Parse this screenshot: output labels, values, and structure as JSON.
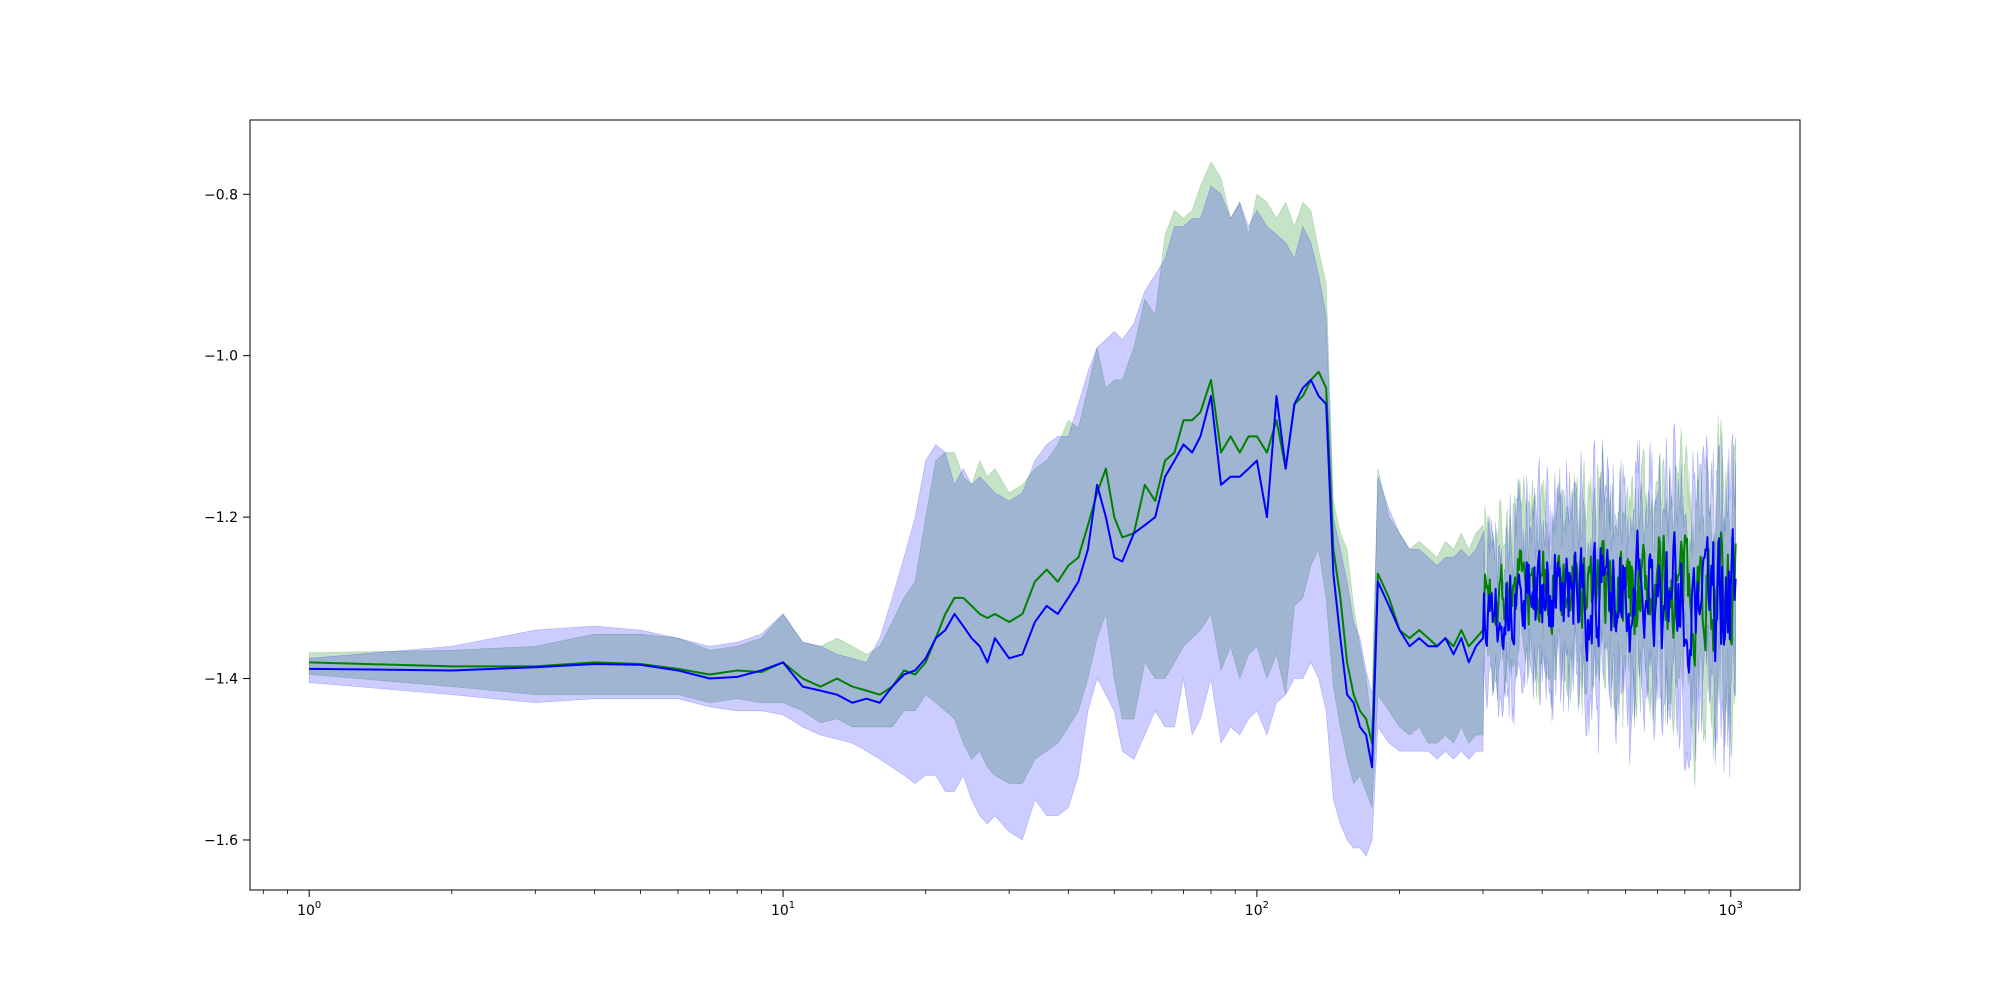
{
  "chart_data": {
    "type": "line",
    "title": "",
    "xlabel": "",
    "ylabel": "",
    "xscale": "log",
    "xlim": [
      0.75,
      1400
    ],
    "ylim": [
      -1.662,
      -0.708
    ],
    "x_ticks": [
      {
        "value": 1,
        "base": "10",
        "exp": "0"
      },
      {
        "value": 10,
        "base": "10",
        "exp": "1"
      },
      {
        "value": 100,
        "base": "10",
        "exp": "2"
      },
      {
        "value": 1000,
        "base": "10",
        "exp": "3"
      }
    ],
    "y_ticks": [
      {
        "value": -0.8,
        "label": "−0.8"
      },
      {
        "value": -1.0,
        "label": "−1.0"
      },
      {
        "value": -1.2,
        "label": "−1.2"
      },
      {
        "value": -1.4,
        "label": "−1.4"
      },
      {
        "value": -1.6,
        "label": "−1.6"
      }
    ],
    "grid": false,
    "legend": "none",
    "noise_region": {
      "x_start": 300,
      "x_end": 1024
    },
    "series": [
      {
        "color": "#008000",
        "band_color": "#008000",
        "band_opacity": 0.22,
        "noise_seed": 7,
        "noise_center": -1.29,
        "noise_amplitude": 0.07,
        "noise_band_halfwidth": 0.13,
        "x": [
          1,
          2,
          3,
          4,
          5,
          6,
          7,
          8,
          9,
          10,
          11,
          12,
          13,
          14,
          15,
          16,
          17,
          18,
          19,
          20,
          21,
          22,
          23,
          24,
          25,
          26,
          27,
          28,
          30,
          32,
          34,
          36,
          38,
          40,
          42,
          44,
          46,
          48,
          50,
          52,
          55,
          58,
          61,
          64,
          67,
          70,
          73,
          76,
          80,
          84,
          88,
          92,
          96,
          100,
          105,
          110,
          115,
          120,
          125,
          130,
          135,
          140,
          145,
          150,
          155,
          160,
          165,
          170,
          175,
          180,
          190,
          200,
          210,
          220,
          230,
          240,
          250,
          260,
          270,
          280,
          290,
          300
        ],
        "y": [
          -1.38,
          -1.385,
          -1.385,
          -1.38,
          -1.382,
          -1.388,
          -1.395,
          -1.39,
          -1.392,
          -1.38,
          -1.4,
          -1.41,
          -1.4,
          -1.41,
          -1.415,
          -1.42,
          -1.41,
          -1.39,
          -1.395,
          -1.38,
          -1.35,
          -1.32,
          -1.3,
          -1.3,
          -1.31,
          -1.32,
          -1.325,
          -1.32,
          -1.33,
          -1.32,
          -1.28,
          -1.265,
          -1.28,
          -1.26,
          -1.25,
          -1.21,
          -1.17,
          -1.14,
          -1.2,
          -1.225,
          -1.22,
          -1.16,
          -1.18,
          -1.13,
          -1.12,
          -1.08,
          -1.08,
          -1.07,
          -1.03,
          -1.12,
          -1.1,
          -1.12,
          -1.1,
          -1.1,
          -1.12,
          -1.08,
          -1.14,
          -1.06,
          -1.05,
          -1.03,
          -1.02,
          -1.04,
          -1.24,
          -1.3,
          -1.38,
          -1.42,
          -1.44,
          -1.45,
          -1.48,
          -1.27,
          -1.3,
          -1.34,
          -1.35,
          -1.34,
          -1.35,
          -1.36,
          -1.35,
          -1.36,
          -1.34,
          -1.36,
          -1.35,
          -1.34
        ],
        "upper": [
          -1.368,
          -1.365,
          -1.36,
          -1.345,
          -1.345,
          -1.35,
          -1.365,
          -1.36,
          -1.35,
          -1.32,
          -1.355,
          -1.36,
          -1.35,
          -1.36,
          -1.37,
          -1.36,
          -1.33,
          -1.3,
          -1.28,
          -1.2,
          -1.13,
          -1.12,
          -1.12,
          -1.15,
          -1.16,
          -1.13,
          -1.15,
          -1.14,
          -1.17,
          -1.16,
          -1.14,
          -1.13,
          -1.11,
          -1.08,
          -1.09,
          -1.04,
          -0.99,
          -1.04,
          -1.03,
          -1.03,
          -0.99,
          -0.93,
          -0.95,
          -0.85,
          -0.82,
          -0.83,
          -0.82,
          -0.79,
          -0.76,
          -0.78,
          -0.83,
          -0.81,
          -0.85,
          -0.8,
          -0.81,
          -0.83,
          -0.81,
          -0.84,
          -0.81,
          -0.82,
          -0.87,
          -0.91,
          -1.18,
          -1.22,
          -1.24,
          -1.31,
          -1.36,
          -1.4,
          -1.46,
          -1.14,
          -1.2,
          -1.22,
          -1.24,
          -1.23,
          -1.24,
          -1.25,
          -1.23,
          -1.24,
          -1.22,
          -1.24,
          -1.22,
          -1.21
        ],
        "lower": [
          -1.395,
          -1.41,
          -1.42,
          -1.42,
          -1.42,
          -1.42,
          -1.43,
          -1.425,
          -1.43,
          -1.43,
          -1.44,
          -1.455,
          -1.45,
          -1.46,
          -1.46,
          -1.46,
          -1.46,
          -1.44,
          -1.44,
          -1.42,
          -1.43,
          -1.44,
          -1.45,
          -1.48,
          -1.5,
          -1.49,
          -1.51,
          -1.52,
          -1.53,
          -1.53,
          -1.5,
          -1.49,
          -1.48,
          -1.46,
          -1.44,
          -1.4,
          -1.35,
          -1.32,
          -1.4,
          -1.45,
          -1.45,
          -1.38,
          -1.4,
          -1.4,
          -1.38,
          -1.36,
          -1.35,
          -1.34,
          -1.32,
          -1.39,
          -1.36,
          -1.4,
          -1.37,
          -1.36,
          -1.4,
          -1.37,
          -1.42,
          -1.31,
          -1.3,
          -1.26,
          -1.24,
          -1.3,
          -1.41,
          -1.46,
          -1.5,
          -1.53,
          -1.52,
          -1.54,
          -1.56,
          -1.42,
          -1.44,
          -1.46,
          -1.47,
          -1.46,
          -1.48,
          -1.48,
          -1.47,
          -1.48,
          -1.46,
          -1.48,
          -1.47,
          -1.47
        ]
      },
      {
        "color": "#0000ff",
        "band_color": "#0000ff",
        "band_opacity": 0.2,
        "noise_seed": 13,
        "noise_center": -1.3,
        "noise_amplitude": 0.08,
        "noise_band_halfwidth": 0.14,
        "x": [
          1,
          2,
          3,
          4,
          5,
          6,
          7,
          8,
          9,
          10,
          11,
          12,
          13,
          14,
          15,
          16,
          17,
          18,
          19,
          20,
          21,
          22,
          23,
          24,
          25,
          26,
          27,
          28,
          30,
          32,
          34,
          36,
          38,
          40,
          42,
          44,
          46,
          48,
          50,
          52,
          55,
          58,
          61,
          64,
          67,
          70,
          73,
          76,
          80,
          84,
          88,
          92,
          96,
          100,
          105,
          110,
          115,
          120,
          125,
          130,
          135,
          140,
          145,
          150,
          155,
          160,
          165,
          170,
          175,
          180,
          190,
          200,
          210,
          220,
          230,
          240,
          250,
          260,
          270,
          280,
          290,
          300
        ],
        "y": [
          -1.388,
          -1.39,
          -1.386,
          -1.382,
          -1.383,
          -1.39,
          -1.4,
          -1.398,
          -1.39,
          -1.38,
          -1.41,
          -1.415,
          -1.42,
          -1.43,
          -1.425,
          -1.43,
          -1.41,
          -1.395,
          -1.39,
          -1.375,
          -1.35,
          -1.34,
          -1.32,
          -1.335,
          -1.35,
          -1.36,
          -1.38,
          -1.35,
          -1.375,
          -1.37,
          -1.33,
          -1.31,
          -1.32,
          -1.3,
          -1.28,
          -1.24,
          -1.16,
          -1.2,
          -1.25,
          -1.255,
          -1.22,
          -1.21,
          -1.2,
          -1.15,
          -1.13,
          -1.11,
          -1.12,
          -1.1,
          -1.05,
          -1.16,
          -1.15,
          -1.15,
          -1.14,
          -1.13,
          -1.2,
          -1.05,
          -1.14,
          -1.06,
          -1.04,
          -1.03,
          -1.05,
          -1.06,
          -1.27,
          -1.35,
          -1.42,
          -1.43,
          -1.46,
          -1.47,
          -1.51,
          -1.28,
          -1.31,
          -1.34,
          -1.36,
          -1.35,
          -1.36,
          -1.36,
          -1.35,
          -1.37,
          -1.35,
          -1.38,
          -1.36,
          -1.35
        ],
        "upper": [
          -1.375,
          -1.36,
          -1.34,
          -1.335,
          -1.34,
          -1.35,
          -1.36,
          -1.355,
          -1.345,
          -1.32,
          -1.355,
          -1.36,
          -1.37,
          -1.375,
          -1.38,
          -1.35,
          -1.3,
          -1.25,
          -1.2,
          -1.13,
          -1.11,
          -1.12,
          -1.16,
          -1.14,
          -1.16,
          -1.15,
          -1.16,
          -1.17,
          -1.18,
          -1.17,
          -1.13,
          -1.11,
          -1.1,
          -1.1,
          -1.06,
          -1.02,
          -0.99,
          -0.98,
          -0.97,
          -0.98,
          -0.96,
          -0.92,
          -0.9,
          -0.88,
          -0.84,
          -0.84,
          -0.83,
          -0.83,
          -0.79,
          -0.8,
          -0.83,
          -0.81,
          -0.84,
          -0.82,
          -0.84,
          -0.85,
          -0.86,
          -0.88,
          -0.84,
          -0.86,
          -0.9,
          -0.95,
          -1.2,
          -1.24,
          -1.28,
          -1.33,
          -1.35,
          -1.39,
          -1.42,
          -1.15,
          -1.19,
          -1.22,
          -1.24,
          -1.24,
          -1.25,
          -1.26,
          -1.25,
          -1.25,
          -1.24,
          -1.25,
          -1.24,
          -1.22
        ],
        "lower": [
          -1.405,
          -1.42,
          -1.43,
          -1.425,
          -1.425,
          -1.425,
          -1.435,
          -1.44,
          -1.44,
          -1.445,
          -1.46,
          -1.47,
          -1.475,
          -1.48,
          -1.49,
          -1.5,
          -1.51,
          -1.52,
          -1.53,
          -1.52,
          -1.52,
          -1.54,
          -1.54,
          -1.52,
          -1.55,
          -1.57,
          -1.58,
          -1.57,
          -1.59,
          -1.6,
          -1.55,
          -1.57,
          -1.57,
          -1.56,
          -1.52,
          -1.44,
          -1.4,
          -1.42,
          -1.44,
          -1.49,
          -1.5,
          -1.47,
          -1.44,
          -1.46,
          -1.46,
          -1.4,
          -1.47,
          -1.45,
          -1.4,
          -1.48,
          -1.46,
          -1.47,
          -1.45,
          -1.44,
          -1.47,
          -1.43,
          -1.42,
          -1.4,
          -1.4,
          -1.38,
          -1.4,
          -1.44,
          -1.55,
          -1.58,
          -1.6,
          -1.61,
          -1.61,
          -1.62,
          -1.6,
          -1.46,
          -1.48,
          -1.49,
          -1.49,
          -1.49,
          -1.49,
          -1.5,
          -1.49,
          -1.5,
          -1.49,
          -1.5,
          -1.49,
          -1.49
        ]
      }
    ]
  }
}
